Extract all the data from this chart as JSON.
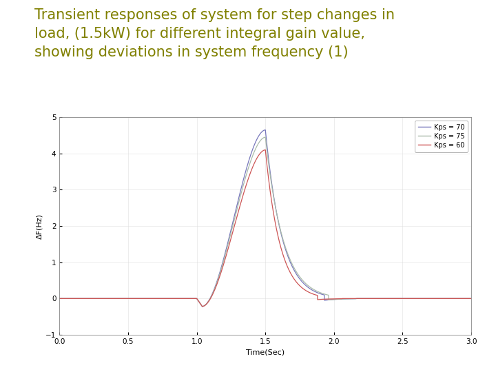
{
  "title_line1": "Transient responses of system for step changes in",
  "title_line2": "load, (1.5kW) for different integral gain value,",
  "title_line3": "showing deviations in system frequency (1)",
  "title_color": "#808000",
  "title_fontsize": 15,
  "xlabel": "Time(Sec)",
  "ylabel": "ΔF(Hz)",
  "xlim": [
    0,
    3
  ],
  "ylim": [
    -1,
    5
  ],
  "xticks": [
    0,
    0.5,
    1.0,
    1.5,
    2.0,
    2.5,
    3.0
  ],
  "yticks": [
    -1,
    0,
    1,
    2,
    3,
    4,
    5
  ],
  "slide_bg": "#ffffff",
  "left_bar_top": "#4d5000",
  "left_bar_mid": "#cccf7a",
  "left_bar_bot": "#909000",
  "separator_color": "#808000",
  "legend_labels": [
    "Kps = 70",
    "Kps = 75",
    "Kps = 60"
  ],
  "line_colors": [
    "#7777bb",
    "#aabbaa",
    "#cc5555"
  ],
  "kps70_peak": 4.65,
  "kps75_peak": 4.45,
  "kps60_peak": 4.1,
  "dip_val": -0.22
}
